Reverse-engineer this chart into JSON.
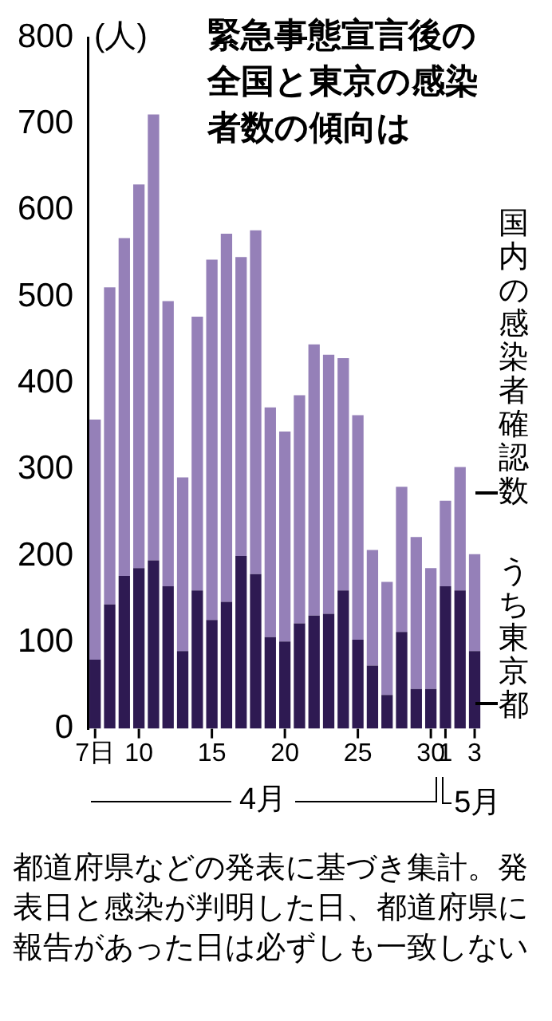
{
  "chart_data": {
    "type": "bar",
    "title": "緊急事態宣言後の全国と東京の感染者数の傾向は",
    "ylabel": "(人)",
    "stacked": true,
    "categories": [
      "7日",
      null,
      null,
      "10",
      null,
      null,
      null,
      null,
      "15",
      null,
      null,
      null,
      null,
      "20",
      null,
      null,
      null,
      null,
      "25",
      null,
      null,
      null,
      null,
      "30",
      "1",
      null,
      "3"
    ],
    "series": [
      {
        "name": "うち東京都",
        "color": "#2e1a52",
        "values": [
          80,
          144,
          177,
          186,
          195,
          165,
          90,
          160,
          126,
          147,
          200,
          179,
          106,
          101,
          122,
          131,
          133,
          160,
          103,
          73,
          39,
          112,
          46,
          46,
          165,
          160,
          90
        ]
      },
      {
        "name": "国内の感染者確認数",
        "color": "#9580b8",
        "values": [
          278,
          367,
          391,
          444,
          516,
          330,
          201,
          317,
          417,
          426,
          346,
          398,
          266,
          243,
          264,
          314,
          300,
          269,
          260,
          134,
          131,
          168,
          176,
          140,
          99,
          143,
          112
        ]
      }
    ],
    "ylim": [
      0,
      800
    ],
    "yticks": [
      0,
      100,
      200,
      300,
      400,
      500,
      600,
      700,
      800
    ],
    "grid": false,
    "annotations": [
      "4月",
      "5月",
      "都道府県などの発表に基づき集計。発表日と感染が判明した日、都道府県に報告があった日は必ずしも一致しない"
    ]
  }
}
